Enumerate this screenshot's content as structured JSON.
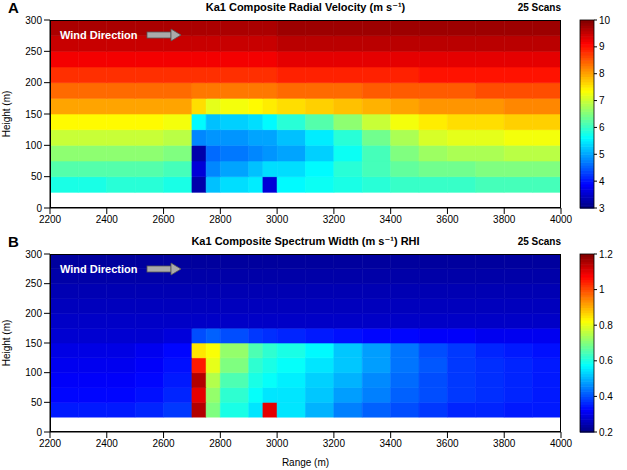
{
  "chart_data": [
    {
      "type": "heatmap",
      "title": "Ka1 Composite Radial Velocity (m s⁻¹)",
      "label": "A",
      "annotations": [
        "Wind Direction",
        "25 Scans"
      ],
      "ylabel": "Height (m)",
      "xlim": [
        2200,
        4000
      ],
      "xticks": [
        2200,
        2400,
        2600,
        2800,
        3000,
        3200,
        3400,
        3600,
        3800,
        4000
      ],
      "ylim": [
        0,
        300
      ],
      "yticks": [
        0,
        50,
        100,
        150,
        200,
        250,
        300
      ],
      "x_edges": [
        2200,
        2300,
        2400,
        2500,
        2600,
        2700,
        2750,
        2800,
        2900,
        2950,
        3000,
        3100,
        3200,
        3300,
        3400,
        3500,
        3600,
        3700,
        3800,
        3900,
        4000
      ],
      "y_edges": [
        0,
        25,
        50,
        75,
        100,
        125,
        150,
        175,
        200,
        225,
        250,
        275,
        300
      ],
      "cells": [
        [
          null,
          null,
          null,
          null,
          null,
          null,
          null,
          null,
          null,
          null,
          null,
          null,
          null,
          null,
          null,
          null,
          null,
          null,
          null,
          null
        ],
        [
          5.8,
          5.8,
          5.9,
          5.9,
          5.8,
          3.3,
          5.2,
          5.4,
          5.5,
          3.6,
          5.6,
          5.7,
          5.8,
          5.9,
          6.0,
          6.0,
          6.0,
          6.1,
          6.1,
          6.1
        ],
        [
          6.2,
          6.2,
          6.2,
          6.2,
          6.1,
          3.6,
          4.8,
          5.0,
          5.2,
          5.4,
          5.4,
          5.6,
          5.9,
          6.1,
          6.3,
          6.4,
          6.4,
          6.5,
          6.5,
          6.5
        ],
        [
          6.6,
          6.6,
          6.6,
          6.6,
          6.5,
          3.3,
          4.6,
          4.7,
          4.8,
          4.9,
          5.0,
          5.3,
          5.7,
          6.1,
          6.5,
          6.7,
          6.8,
          6.8,
          6.9,
          6.9
        ],
        [
          7.0,
          7.0,
          7.0,
          7.0,
          6.9,
          4.8,
          4.9,
          4.9,
          5.0,
          5.0,
          5.2,
          5.5,
          5.9,
          6.4,
          6.8,
          7.1,
          7.2,
          7.2,
          7.3,
          7.3
        ],
        [
          7.4,
          7.4,
          7.4,
          7.4,
          7.3,
          5.6,
          5.2,
          5.3,
          5.4,
          5.6,
          5.9,
          6.2,
          6.6,
          7.0,
          7.3,
          7.5,
          7.6,
          7.6,
          7.7,
          7.7
        ],
        [
          8.0,
          8.0,
          8.0,
          8.0,
          8.0,
          7.6,
          7.2,
          7.3,
          7.4,
          7.5,
          7.6,
          7.7,
          7.8,
          7.9,
          8.0,
          8.1,
          8.1,
          8.1,
          8.2,
          8.2
        ],
        [
          8.4,
          8.4,
          8.4,
          8.4,
          8.4,
          8.3,
          8.3,
          8.3,
          8.3,
          8.3,
          8.4,
          8.4,
          8.4,
          8.5,
          8.5,
          8.5,
          8.5,
          8.6,
          8.6,
          8.6
        ],
        [
          8.8,
          8.8,
          8.8,
          8.8,
          8.8,
          8.8,
          8.8,
          8.8,
          8.8,
          8.8,
          8.9,
          8.9,
          8.9,
          8.9,
          8.9,
          9.0,
          9.0,
          9.0,
          9.0,
          9.0
        ],
        [
          9.2,
          9.2,
          9.2,
          9.2,
          9.2,
          9.2,
          9.2,
          9.2,
          9.2,
          9.2,
          9.3,
          9.3,
          9.3,
          9.3,
          9.3,
          9.3,
          9.3,
          9.3,
          9.3,
          9.3
        ],
        [
          9.5,
          9.5,
          9.5,
          9.5,
          9.5,
          9.5,
          9.5,
          9.5,
          9.5,
          9.5,
          9.6,
          9.6,
          9.6,
          9.6,
          9.6,
          9.6,
          9.6,
          9.6,
          9.6,
          9.6
        ],
        [
          9.7,
          9.7,
          9.7,
          9.7,
          9.7,
          9.7,
          9.7,
          9.7,
          9.7,
          9.7,
          9.8,
          9.8,
          9.8,
          9.8,
          9.8,
          9.8,
          9.8,
          9.8,
          9.8,
          9.8
        ]
      ],
      "colorbar": {
        "lim": [
          3,
          10
        ],
        "ticks": [
          3,
          4,
          5,
          6,
          7,
          8,
          9,
          10
        ]
      }
    },
    {
      "type": "heatmap",
      "title": "Ka1 Composite Spectrum Width (m s⁻¹) RHI",
      "label": "B",
      "annotations": [
        "Wind Direction",
        "25 Scans"
      ],
      "xlabel": "Range (m)",
      "ylabel": "Height (m)",
      "xlim": [
        2200,
        4000
      ],
      "xticks": [
        2200,
        2400,
        2600,
        2800,
        3000,
        3200,
        3400,
        3600,
        3800,
        4000
      ],
      "ylim": [
        0,
        300
      ],
      "yticks": [
        0,
        50,
        100,
        150,
        200,
        250,
        300
      ],
      "x_edges": [
        2200,
        2300,
        2400,
        2500,
        2600,
        2700,
        2750,
        2800,
        2900,
        2950,
        3000,
        3100,
        3200,
        3300,
        3400,
        3500,
        3600,
        3700,
        3800,
        3900,
        4000
      ],
      "y_edges": [
        0,
        25,
        50,
        75,
        100,
        125,
        150,
        175,
        200,
        225,
        250,
        275,
        300
      ],
      "cells": [
        [
          null,
          null,
          null,
          null,
          null,
          null,
          null,
          null,
          null,
          null,
          null,
          null,
          null,
          null,
          null,
          null,
          null,
          null,
          null,
          null
        ],
        [
          0.35,
          0.35,
          0.35,
          0.36,
          0.38,
          1.15,
          0.7,
          0.6,
          0.55,
          1.1,
          0.55,
          0.5,
          0.45,
          0.42,
          0.4,
          0.38,
          0.36,
          0.36,
          0.35,
          0.35
        ],
        [
          0.33,
          0.33,
          0.33,
          0.34,
          0.36,
          1.1,
          0.72,
          0.62,
          0.58,
          0.55,
          0.55,
          0.52,
          0.48,
          0.45,
          0.42,
          0.4,
          0.38,
          0.37,
          0.36,
          0.35
        ],
        [
          0.32,
          0.32,
          0.32,
          0.33,
          0.35,
          1.15,
          0.75,
          0.65,
          0.6,
          0.58,
          0.56,
          0.53,
          0.5,
          0.46,
          0.43,
          0.4,
          0.38,
          0.37,
          0.36,
          0.35
        ],
        [
          0.31,
          0.31,
          0.31,
          0.32,
          0.34,
          1.05,
          0.8,
          0.7,
          0.62,
          0.6,
          0.58,
          0.55,
          0.52,
          0.48,
          0.44,
          0.41,
          0.38,
          0.37,
          0.36,
          0.35
        ],
        [
          0.3,
          0.3,
          0.3,
          0.31,
          0.33,
          0.85,
          0.82,
          0.72,
          0.65,
          0.62,
          0.6,
          0.57,
          0.52,
          0.48,
          0.44,
          0.4,
          0.38,
          0.36,
          0.35,
          0.34
        ],
        [
          0.28,
          0.28,
          0.28,
          0.28,
          0.29,
          0.4,
          0.42,
          0.4,
          0.38,
          0.37,
          0.36,
          0.35,
          0.34,
          0.33,
          0.33,
          0.32,
          0.32,
          0.31,
          0.31,
          0.31
        ],
        [
          0.27,
          0.27,
          0.27,
          0.27,
          0.27,
          0.27,
          0.27,
          0.27,
          0.27,
          0.27,
          0.27,
          0.27,
          0.27,
          0.27,
          0.27,
          0.27,
          0.27,
          0.27,
          0.27,
          0.27
        ],
        [
          0.26,
          0.26,
          0.26,
          0.26,
          0.26,
          0.26,
          0.26,
          0.26,
          0.26,
          0.26,
          0.26,
          0.26,
          0.26,
          0.26,
          0.26,
          0.26,
          0.26,
          0.26,
          0.26,
          0.26
        ],
        [
          0.25,
          0.25,
          0.25,
          0.25,
          0.25,
          0.25,
          0.25,
          0.25,
          0.25,
          0.25,
          0.25,
          0.25,
          0.25,
          0.25,
          0.25,
          0.25,
          0.25,
          0.25,
          0.25,
          0.25
        ],
        [
          0.24,
          0.24,
          0.24,
          0.24,
          0.24,
          0.24,
          0.24,
          0.24,
          0.24,
          0.24,
          0.24,
          0.24,
          0.24,
          0.24,
          0.24,
          0.24,
          0.24,
          0.24,
          0.24,
          0.24
        ],
        [
          0.23,
          0.23,
          0.23,
          0.23,
          0.23,
          0.23,
          0.23,
          0.23,
          0.23,
          0.23,
          0.23,
          0.23,
          0.23,
          0.23,
          0.23,
          0.23,
          0.23,
          0.23,
          0.23,
          0.23
        ]
      ],
      "colorbar": {
        "lim": [
          0.2,
          1.2
        ],
        "ticks": [
          0.2,
          0.4,
          0.6,
          0.8,
          1,
          1.2
        ]
      }
    }
  ]
}
